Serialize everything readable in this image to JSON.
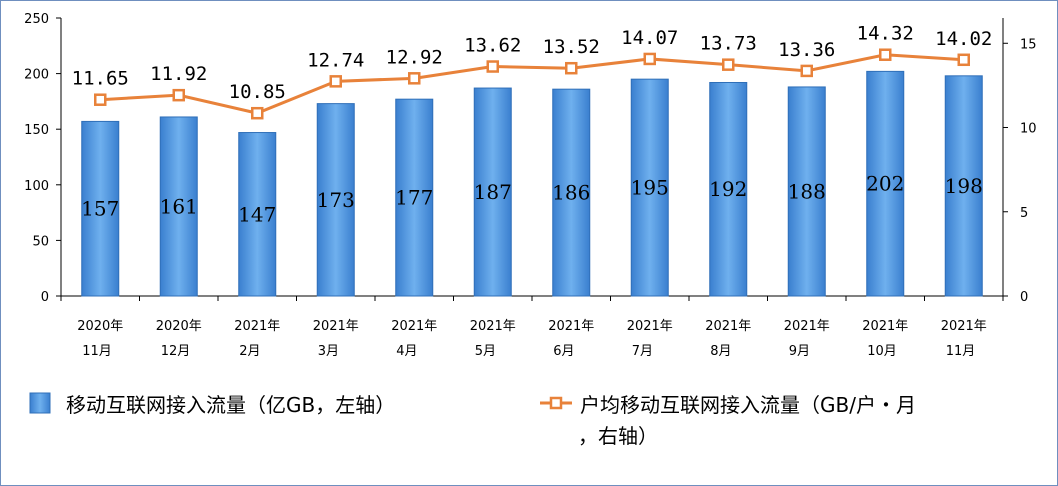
{
  "chart_data": {
    "type": "bar",
    "categories": [
      [
        "2020年",
        "11月"
      ],
      [
        "2020年",
        "12月"
      ],
      [
        "2021年",
        "2月"
      ],
      [
        "2021年",
        "3月"
      ],
      [
        "2021年",
        "4月"
      ],
      [
        "2021年",
        "5月"
      ],
      [
        "2021年",
        "6月"
      ],
      [
        "2021年",
        "7月"
      ],
      [
        "2021年",
        "8月"
      ],
      [
        "2021年",
        "9月"
      ],
      [
        "2021年",
        "10月"
      ],
      [
        "2021年",
        "11月"
      ]
    ],
    "series": [
      {
        "name": "移动互联网接入流量（亿GB，左轴）",
        "type": "bar",
        "axis": "left",
        "values": [
          157,
          161,
          147,
          173,
          177,
          187,
          186,
          195,
          192,
          188,
          202,
          198
        ],
        "labels": [
          "157",
          "161",
          "147",
          "173",
          "177",
          "187",
          "186",
          "195",
          "192",
          "188",
          "202",
          "198"
        ],
        "color": "#4a90d9"
      },
      {
        "name_lines": [
          "户均移动互联网接入流量（GB/户・月",
          "，右轴）"
        ],
        "type": "line",
        "axis": "right",
        "values": [
          11.65,
          11.92,
          10.85,
          12.74,
          12.92,
          13.62,
          13.52,
          14.07,
          13.73,
          13.36,
          14.32,
          14.02
        ],
        "labels": [
          "11.65",
          "11.92",
          "10.85",
          "12.74",
          "12.92",
          "13.62",
          "13.52",
          "14.07",
          "13.73",
          "13.36",
          "14.32",
          "14.02"
        ],
        "color": "#e8823a"
      }
    ],
    "y_left": {
      "range": [
        0,
        250
      ],
      "ticks": [
        "0",
        "50",
        "100",
        "150",
        "200",
        "250"
      ],
      "tick_values": [
        0,
        50,
        100,
        150,
        200,
        250
      ]
    },
    "y_right": {
      "range": [
        0,
        16.5
      ],
      "ticks": [
        "0",
        "5",
        "10",
        "15"
      ],
      "tick_values": [
        0,
        5,
        10,
        15
      ]
    },
    "grid": false,
    "legend_position": "bottom"
  }
}
